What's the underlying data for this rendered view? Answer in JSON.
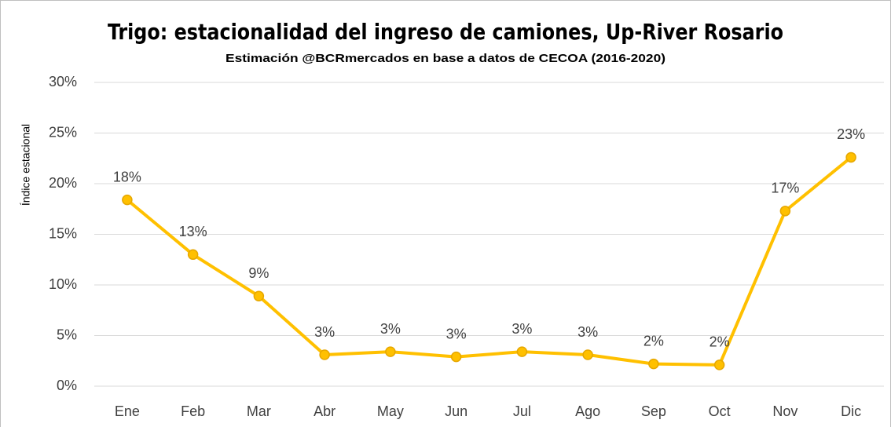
{
  "chart_data": {
    "type": "line",
    "title": "Trigo: estacionalidad del ingreso de camiones, Up-River Rosario",
    "subtitle": "Estimación @BCRmercados en base a datos de CECOA (2016-2020)",
    "y_label": "Índice estacional",
    "categories": [
      "Ene",
      "Feb",
      "Mar",
      "Abr",
      "May",
      "Jun",
      "Jul",
      "Ago",
      "Sep",
      "Oct",
      "Nov",
      "Dic"
    ],
    "series": [
      {
        "name": "Índice estacional",
        "color": "#FFC000",
        "values": [
          18.4,
          13.0,
          8.9,
          3.1,
          3.4,
          2.9,
          3.4,
          3.1,
          2.2,
          2.1,
          17.3,
          22.6
        ],
        "value_labels": [
          "18%",
          "13%",
          "9%",
          "3%",
          "3%",
          "3%",
          "3%",
          "3%",
          "2%",
          "2%",
          "17%",
          "23%"
        ]
      }
    ],
    "ylim": [
      0,
      30
    ],
    "yticks": [
      {
        "value": 0,
        "label": "0%"
      },
      {
        "value": 5,
        "label": "5%"
      },
      {
        "value": 10,
        "label": "10%"
      },
      {
        "value": 15,
        "label": "15%"
      },
      {
        "value": 20,
        "label": "20%"
      },
      {
        "value": 25,
        "label": "25%"
      },
      {
        "value": 30,
        "label": "30%"
      }
    ],
    "grid": true
  }
}
